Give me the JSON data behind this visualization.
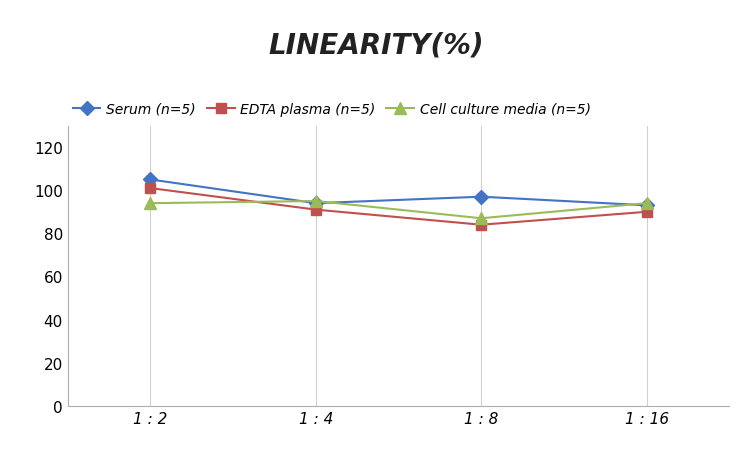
{
  "title": "LINEARITY(%)",
  "x_labels": [
    "1 : 2",
    "1 : 4",
    "1 : 8",
    "1 : 16"
  ],
  "x_positions": [
    0,
    1,
    2,
    3
  ],
  "series": [
    {
      "label": "Serum (n=5)",
      "values": [
        105,
        94,
        97,
        93
      ],
      "color": "#4472C4",
      "marker": "D",
      "markersize": 7
    },
    {
      "label": "EDTA plasma (n=5)",
      "values": [
        101,
        91,
        84,
        90
      ],
      "color": "#C0504D",
      "marker": "s",
      "markersize": 7
    },
    {
      "label": "Cell culture media (n=5)",
      "values": [
        94,
        95,
        87,
        94
      ],
      "color": "#9BBB59",
      "marker": "^",
      "markersize": 8
    }
  ],
  "ylim": [
    0,
    130
  ],
  "yticks": [
    0,
    20,
    40,
    60,
    80,
    100,
    120
  ],
  "background_color": "#ffffff",
  "grid_color": "#d0d0d0",
  "title_fontsize": 20,
  "legend_fontsize": 10,
  "tick_fontsize": 11,
  "title_fontstyle": "italic",
  "title_fontweight": "bold"
}
